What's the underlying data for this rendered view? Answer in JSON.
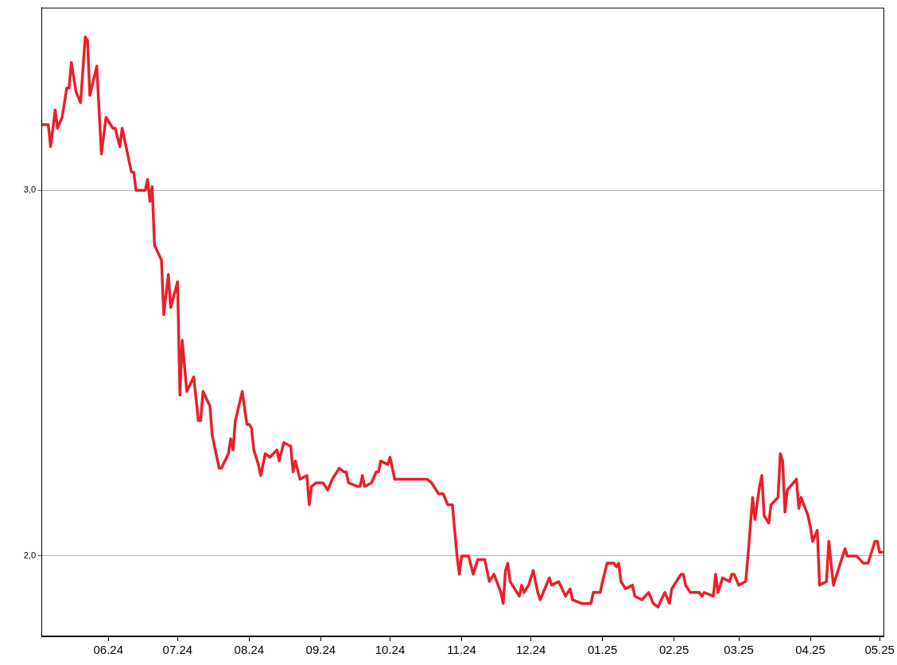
{
  "chart_data": {
    "type": "line",
    "line_style": "solid",
    "marker": "none",
    "grid": "y",
    "legend": false,
    "xlim": [
      "2024-05-03",
      "2025-05-03"
    ],
    "xticks": [
      {
        "value": "2024-06-01",
        "label": "06.24"
      },
      {
        "value": "2024-07-01",
        "label": "07.24"
      },
      {
        "value": "2024-08-01",
        "label": "08.24"
      },
      {
        "value": "2024-09-01",
        "label": "09.24"
      },
      {
        "value": "2024-10-01",
        "label": "10.24"
      },
      {
        "value": "2024-11-01",
        "label": "11.24"
      },
      {
        "value": "2024-12-01",
        "label": "12.24"
      },
      {
        "value": "2025-01-01",
        "label": "01.25"
      },
      {
        "value": "2025-02-01",
        "label": "02.25"
      },
      {
        "value": "2025-03-01",
        "label": "03.25"
      },
      {
        "value": "2025-04-01",
        "label": "04.25"
      },
      {
        "value": "2025-05-01",
        "label": "05.25"
      }
    ],
    "ylim": [
      1.78,
      3.5
    ],
    "yticks": [
      {
        "value": 2,
        "label": "2,0"
      },
      {
        "value": 3,
        "label": "3,0"
      }
    ],
    "x": [
      "2024-05-03",
      "2024-05-06",
      "2024-05-07",
      "2024-05-09",
      "2024-05-10",
      "2024-05-12",
      "2024-05-14",
      "2024-05-15",
      "2024-05-16",
      "2024-05-18",
      "2024-05-20",
      "2024-05-22",
      "2024-05-23",
      "2024-05-24",
      "2024-05-27",
      "2024-05-29",
      "2024-05-31",
      "2024-06-03",
      "2024-06-04",
      "2024-06-06",
      "2024-06-07",
      "2024-06-11",
      "2024-06-12",
      "2024-06-13",
      "2024-06-17",
      "2024-06-18",
      "2024-06-19",
      "2024-06-20",
      "2024-06-21",
      "2024-06-24",
      "2024-06-25",
      "2024-06-27",
      "2024-06-28",
      "2024-07-01",
      "2024-07-02",
      "2024-07-03",
      "2024-07-05",
      "2024-07-08",
      "2024-07-10",
      "2024-07-11",
      "2024-07-12",
      "2024-07-15",
      "2024-07-16",
      "2024-07-19",
      "2024-07-20",
      "2024-07-23",
      "2024-07-24",
      "2024-07-25",
      "2024-07-26",
      "2024-07-29",
      "2024-07-31",
      "2024-08-01",
      "2024-08-02",
      "2024-08-03",
      "2024-08-05",
      "2024-08-06",
      "2024-08-08",
      "2024-08-10",
      "2024-08-13",
      "2024-08-14",
      "2024-08-16",
      "2024-08-19",
      "2024-08-20",
      "2024-08-21",
      "2024-08-23",
      "2024-08-26",
      "2024-08-27",
      "2024-08-28",
      "2024-08-30",
      "2024-09-02",
      "2024-09-04",
      "2024-09-06",
      "2024-09-09",
      "2024-09-11",
      "2024-09-12",
      "2024-09-13",
      "2024-09-17",
      "2024-09-18",
      "2024-09-19",
      "2024-09-20",
      "2024-09-23",
      "2024-09-25",
      "2024-09-26",
      "2024-09-27",
      "2024-09-30",
      "2024-10-01",
      "2024-10-03",
      "2024-10-07",
      "2024-10-14",
      "2024-10-17",
      "2024-10-19",
      "2024-10-22",
      "2024-10-24",
      "2024-10-26",
      "2024-10-28",
      "2024-10-30",
      "2024-10-31",
      "2024-11-01",
      "2024-11-04",
      "2024-11-06",
      "2024-11-08",
      "2024-11-11",
      "2024-11-13",
      "2024-11-15",
      "2024-11-18",
      "2024-11-19",
      "2024-11-20",
      "2024-11-21",
      "2024-11-22",
      "2024-11-26",
      "2024-11-27",
      "2024-11-28",
      "2024-11-30",
      "2024-12-02",
      "2024-12-04",
      "2024-12-05",
      "2024-12-07",
      "2024-12-09",
      "2024-12-10",
      "2024-12-13",
      "2024-12-16",
      "2024-12-18",
      "2024-12-19",
      "2024-12-23",
      "2024-12-27",
      "2024-12-28",
      "2024-12-31",
      "2025-01-01",
      "2025-01-03",
      "2025-01-06",
      "2025-01-07",
      "2025-01-08",
      "2025-01-09",
      "2025-01-11",
      "2025-01-14",
      "2025-01-15",
      "2025-01-18",
      "2025-01-21",
      "2025-01-23",
      "2025-01-25",
      "2025-01-28",
      "2025-01-30",
      "2025-01-31",
      "2025-02-04",
      "2025-02-05",
      "2025-02-06",
      "2025-02-08",
      "2025-02-12",
      "2025-02-13",
      "2025-02-14",
      "2025-02-18",
      "2025-02-19",
      "2025-02-20",
      "2025-02-22",
      "2025-02-25",
      "2025-02-26",
      "2025-02-27",
      "2025-03-01",
      "2025-03-04",
      "2025-03-05",
      "2025-03-07",
      "2025-03-08",
      "2025-03-10",
      "2025-03-11",
      "2025-03-12",
      "2025-03-14",
      "2025-03-15",
      "2025-03-18",
      "2025-03-19",
      "2025-03-20",
      "2025-03-21",
      "2025-03-22",
      "2025-03-26",
      "2025-03-27",
      "2025-03-28",
      "2025-03-31",
      "2025-04-01",
      "2025-04-02",
      "2025-04-04",
      "2025-04-05",
      "2025-04-08",
      "2025-04-09",
      "2025-04-11",
      "2025-04-16",
      "2025-04-17",
      "2025-04-21",
      "2025-04-24",
      "2025-04-26",
      "2025-04-29",
      "2025-04-30",
      "2025-05-01",
      "2025-05-02"
    ],
    "series": [
      {
        "color": "#e8202a",
        "values": [
          3.18,
          3.18,
          3.12,
          3.22,
          3.17,
          3.2,
          3.28,
          3.28,
          3.35,
          3.27,
          3.24,
          3.42,
          3.41,
          3.26,
          3.34,
          3.1,
          3.2,
          3.17,
          3.17,
          3.12,
          3.17,
          3.05,
          3.05,
          3.0,
          3.0,
          3.03,
          2.97,
          3.01,
          2.85,
          2.81,
          2.66,
          2.77,
          2.68,
          2.75,
          2.44,
          2.59,
          2.45,
          2.49,
          2.37,
          2.37,
          2.45,
          2.41,
          2.33,
          2.24,
          2.24,
          2.28,
          2.32,
          2.29,
          2.37,
          2.45,
          2.36,
          2.36,
          2.35,
          2.29,
          2.25,
          2.22,
          2.28,
          2.27,
          2.29,
          2.26,
          2.31,
          2.3,
          2.23,
          2.26,
          2.21,
          2.22,
          2.14,
          2.19,
          2.2,
          2.2,
          2.18,
          2.21,
          2.24,
          2.23,
          2.23,
          2.2,
          2.19,
          2.19,
          2.22,
          2.19,
          2.2,
          2.23,
          2.23,
          2.26,
          2.25,
          2.27,
          2.21,
          2.21,
          2.21,
          2.21,
          2.2,
          2.17,
          2.17,
          2.14,
          2.14,
          2.0,
          1.95,
          2.0,
          2.0,
          1.95,
          1.99,
          1.99,
          1.93,
          1.95,
          1.9,
          1.87,
          1.96,
          1.98,
          1.93,
          1.89,
          1.92,
          1.9,
          1.92,
          1.96,
          1.9,
          1.88,
          1.91,
          1.94,
          1.92,
          1.93,
          1.89,
          1.91,
          1.88,
          1.87,
          1.87,
          1.9,
          1.9,
          1.93,
          1.98,
          1.98,
          1.97,
          1.98,
          1.93,
          1.91,
          1.92,
          1.89,
          1.88,
          1.9,
          1.87,
          1.86,
          1.9,
          1.87,
          1.91,
          1.95,
          1.95,
          1.92,
          1.9,
          1.9,
          1.89,
          1.9,
          1.89,
          1.95,
          1.9,
          1.94,
          1.93,
          1.95,
          1.95,
          1.92,
          1.93,
          2.0,
          2.16,
          2.1,
          2.19,
          2.22,
          2.11,
          2.09,
          2.14,
          2.16,
          2.28,
          2.26,
          2.12,
          2.18,
          2.21,
          2.13,
          2.16,
          2.11,
          2.08,
          2.04,
          2.07,
          1.92,
          1.93,
          2.04,
          1.92,
          2.02,
          2.0,
          2.0,
          1.98,
          1.98,
          2.04,
          2.04,
          2.01,
          2.01
        ]
      }
    ]
  }
}
